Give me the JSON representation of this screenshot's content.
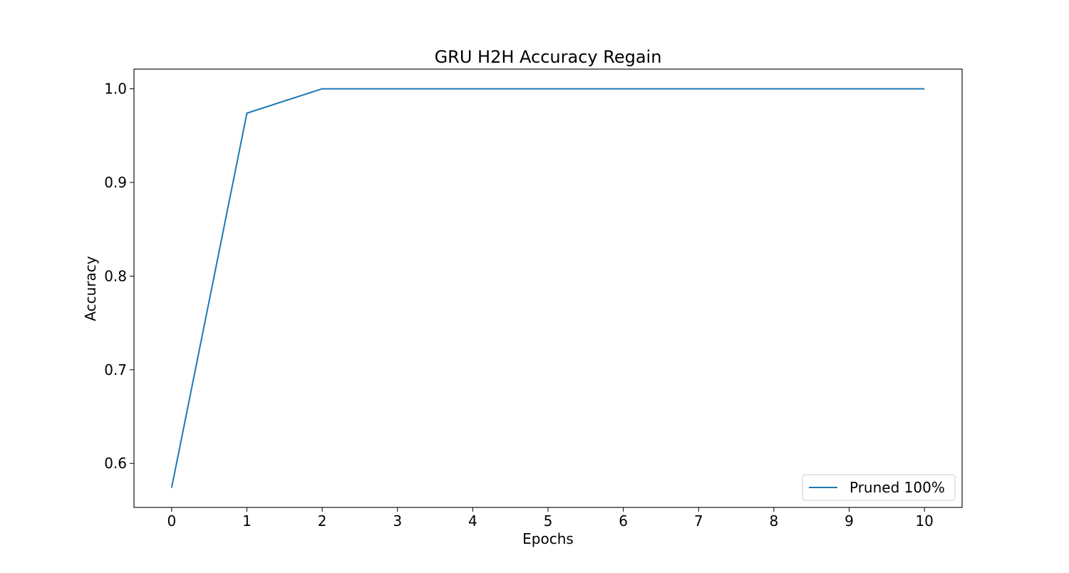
{
  "chart_data": {
    "type": "line",
    "title": "GRU H2H Accuracy Regain",
    "xlabel": "Epochs",
    "ylabel": "Accuracy",
    "x": [
      0,
      1,
      2,
      3,
      4,
      5,
      6,
      7,
      8,
      9,
      10
    ],
    "series": [
      {
        "name": "Pruned 100%",
        "color": "#1f77b4",
        "values": [
          0.574,
          0.974,
          1.0,
          1.0,
          1.0,
          1.0,
          1.0,
          1.0,
          1.0,
          1.0,
          1.0
        ]
      }
    ],
    "xticks": [
      0,
      1,
      2,
      3,
      4,
      5,
      6,
      7,
      8,
      9,
      10
    ],
    "xtick_labels": [
      "0",
      "1",
      "2",
      "3",
      "4",
      "5",
      "6",
      "7",
      "8",
      "9",
      "10"
    ],
    "yticks": [
      0.6,
      0.7,
      0.8,
      0.9,
      1.0
    ],
    "ytick_labels": [
      "0.6",
      "0.7",
      "0.8",
      "0.9",
      "1.0"
    ],
    "xlim": [
      -0.5,
      10.5
    ],
    "ylim": [
      0.553,
      1.021
    ],
    "grid": false,
    "legend_position": "lower-right"
  }
}
